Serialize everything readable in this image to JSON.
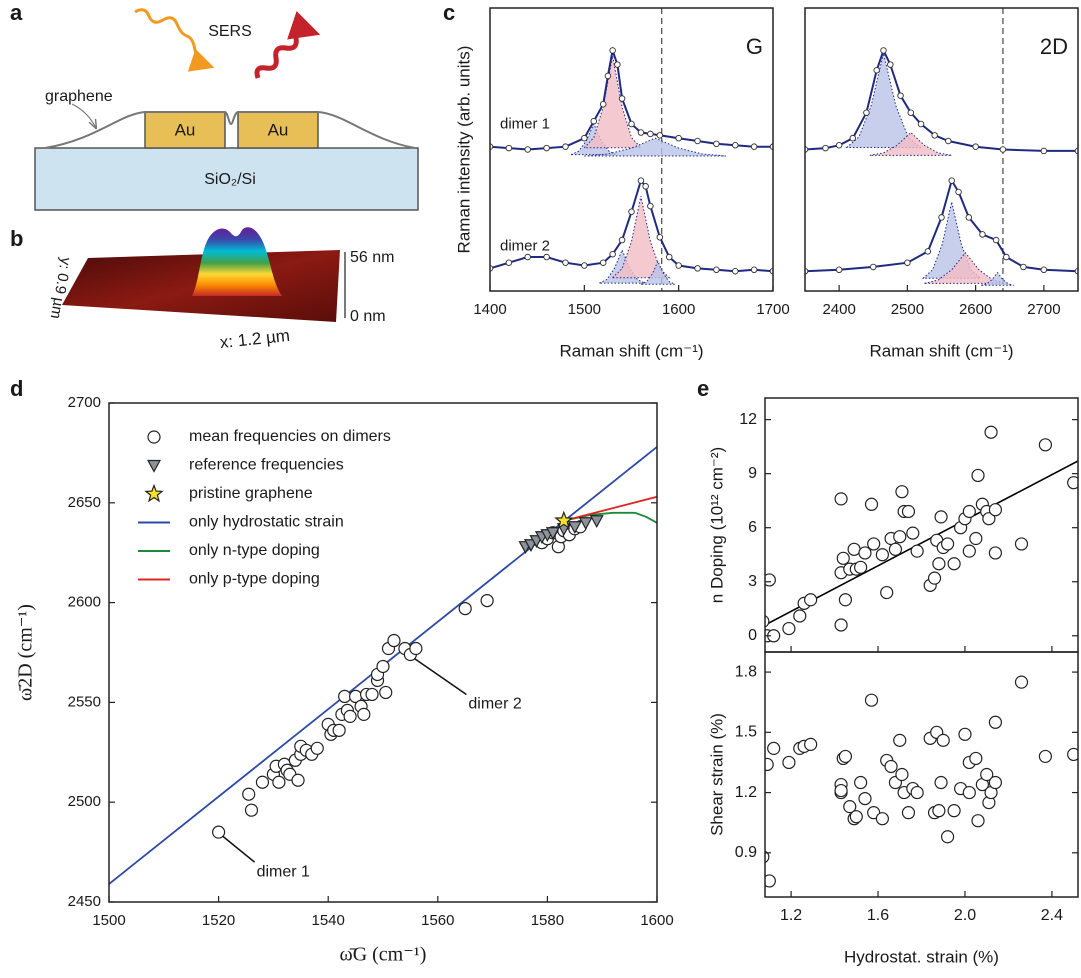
{
  "labels": [
    "a",
    "b",
    "c",
    "d",
    "e"
  ],
  "schematic": {
    "sers": "SERS",
    "graphene": "graphene",
    "gold": [
      "Au",
      "Au"
    ],
    "substrate": "SiO₂/Si"
  },
  "afm": {
    "z_max_label": "56 nm",
    "z_min_label": "0 nm",
    "y_label": "y: 0.9 µm",
    "x_label": "x: 1.2 µm"
  },
  "chart_data": [
    {
      "type": "spectra",
      "panel_label": "G",
      "xlim": [
        1400,
        1700
      ],
      "xticks": [
        1400,
        1500,
        1600,
        1700
      ],
      "ylim": [
        0,
        10
      ],
      "xlabel": "Raman shift (cm⁻¹)",
      "ylabel": "Raman intensity (arb. units)",
      "reference_line": 1582,
      "series": [
        {
          "name": "dimer 1",
          "color": "#1f2a80",
          "x": [
            1400,
            1420,
            1440,
            1460,
            1480,
            1500,
            1510,
            1520,
            1525,
            1530,
            1535,
            1540,
            1550,
            1560,
            1570,
            1580,
            1600,
            1620,
            1640,
            1660,
            1680,
            1700
          ],
          "values": [
            5.1,
            5.05,
            5.0,
            5.05,
            5.1,
            5.4,
            6.0,
            6.6,
            7.6,
            8.5,
            8.0,
            6.8,
            5.9,
            5.6,
            5.55,
            5.5,
            5.4,
            5.3,
            5.2,
            5.15,
            5.1,
            5.1
          ],
          "components": [
            {
              "color": "#b9c3e8",
              "x": [
                1486,
                1494,
                1502,
                1510,
                1518,
                1526,
                1534
              ],
              "values": [
                4.82,
                4.94,
                5.3,
                5.9,
                5.3,
                4.94,
                4.82
              ]
            },
            {
              "color": "#f3bcc4",
              "x": [
                1500,
                1510,
                1520,
                1530,
                1540,
                1550,
                1560
              ],
              "values": [
                5.06,
                5.42,
                6.5,
                8.3,
                6.5,
                5.42,
                5.06
              ]
            },
            {
              "color": "#b9c3e8",
              "x": [
                1500,
                1525,
                1550,
                1575,
                1600,
                1625,
                1650
              ],
              "values": [
                4.77,
                4.84,
                5.05,
                5.4,
                5.05,
                4.84,
                4.77
              ]
            }
          ]
        },
        {
          "name": "dimer 2",
          "color": "#1f2a80",
          "x": [
            1400,
            1420,
            1440,
            1460,
            1480,
            1500,
            1520,
            1530,
            1540,
            1550,
            1560,
            1565,
            1570,
            1580,
            1590,
            1600,
            1620,
            1640,
            1660,
            1680,
            1700
          ],
          "values": [
            0.8,
            1.0,
            1.2,
            1.2,
            1.0,
            0.9,
            1.0,
            1.3,
            1.8,
            2.8,
            3.9,
            3.7,
            3.0,
            1.9,
            1.2,
            0.9,
            0.8,
            0.75,
            0.7,
            0.75,
            0.7
          ],
          "components": [
            {
              "color": "#b9c3e8",
              "x": [
                1516,
                1524,
                1532,
                1540,
                1548,
                1556,
                1564
              ],
              "values": [
                0.28,
                0.41,
                0.8,
                1.45,
                0.8,
                0.41,
                0.28
              ]
            },
            {
              "color": "#f3bcc4",
              "x": [
                1530,
                1540,
                1550,
                1560,
                1570,
                1580,
                1590
              ],
              "values": [
                0.47,
                0.79,
                1.75,
                3.35,
                1.75,
                0.79,
                0.47
              ]
            },
            {
              "color": "#b9c3e8",
              "x": [
                1560,
                1566,
                1572,
                1578,
                1584,
                1590,
                1596
              ],
              "values": [
                0.24,
                0.33,
                0.6,
                1.05,
                0.6,
                0.33,
                0.24
              ]
            }
          ]
        }
      ]
    },
    {
      "type": "spectra",
      "panel_label": "2D",
      "xlim": [
        2350,
        2750
      ],
      "xticks": [
        2400,
        2500,
        2600,
        2700
      ],
      "ylim": [
        0,
        10
      ],
      "xlabel": "Raman shift (cm⁻¹)",
      "reference_line": 2640,
      "series": [
        {
          "color": "#1f2a80",
          "x": [
            2350,
            2380,
            2400,
            2420,
            2440,
            2455,
            2465,
            2475,
            2490,
            2505,
            2520,
            2540,
            2560,
            2600,
            2640,
            2700,
            2750
          ],
          "values": [
            5.0,
            5.05,
            5.15,
            5.4,
            6.3,
            7.8,
            8.5,
            8.0,
            6.9,
            6.3,
            5.9,
            5.5,
            5.3,
            5.1,
            5.0,
            4.95,
            4.95
          ],
          "components": [
            {
              "color": "#b9c3e8",
              "x": [
                2411,
                2429,
                2447,
                2465,
                2483,
                2501,
                2519
              ],
              "values": [
                5.07,
                5.44,
                6.55,
                8.4,
                6.55,
                5.44,
                5.07
              ]
            },
            {
              "color": "#f3bcc4",
              "x": [
                2445,
                2465,
                2485,
                2505,
                2525,
                2545,
                2565
              ],
              "values": [
                4.79,
                4.88,
                5.15,
                5.6,
                5.15,
                4.88,
                4.79
              ]
            }
          ]
        },
        {
          "color": "#1f2a80",
          "x": [
            2350,
            2400,
            2450,
            2500,
            2530,
            2550,
            2565,
            2575,
            2590,
            2610,
            2630,
            2645,
            2670,
            2700,
            2750
          ],
          "values": [
            0.7,
            0.75,
            0.85,
            1.0,
            1.4,
            2.6,
            3.9,
            3.5,
            2.6,
            2.0,
            1.8,
            1.2,
            0.85,
            0.75,
            0.7
          ],
          "components": [
            {
              "color": "#b9c3e8",
              "x": [
                2523,
                2537,
                2551,
                2565,
                2579,
                2593,
                2607
              ],
              "values": [
                0.45,
                0.75,
                1.65,
                3.15,
                1.65,
                0.75,
                0.45
              ]
            },
            {
              "color": "#f3bcc4",
              "x": [
                2525,
                2545,
                2565,
                2585,
                2605,
                2625,
                2645
              ],
              "values": [
                0.27,
                0.39,
                0.75,
                1.35,
                0.75,
                0.39,
                0.27
              ]
            },
            {
              "color": "#b9c3e8",
              "x": [
                2608,
                2616,
                2624,
                2632,
                2640,
                2648,
                2656
              ],
              "values": [
                0.2,
                0.25,
                0.4,
                0.65,
                0.4,
                0.25,
                0.2
              ]
            }
          ]
        }
      ]
    },
    {
      "type": "scatter",
      "xlim": [
        1500,
        1600
      ],
      "ylim": [
        2450,
        2700
      ],
      "xticks": [
        1500,
        1520,
        1540,
        1560,
        1580,
        1600
      ],
      "yticks": [
        2450,
        2500,
        2550,
        2600,
        2650,
        2700
      ],
      "xlabel": "ω̄G (cm⁻¹)",
      "ylabel": "ω̄2D (cm⁻¹)",
      "legend": "upper left",
      "annotations": [
        "dimer 1",
        "dimer 2"
      ],
      "series": [
        {
          "name": "mean frequencies on dimers",
          "marker": "circle",
          "color": "#ffffff",
          "x": [
            1520,
            1525.5,
            1526,
            1528,
            1530,
            1530.5,
            1531,
            1532,
            1532.5,
            1533,
            1534,
            1534.5,
            1535,
            1535,
            1536,
            1537,
            1538,
            1540,
            1540.5,
            1541,
            1542,
            1542.5,
            1543,
            1543.5,
            1544,
            1545,
            1546,
            1546.5,
            1547,
            1548,
            1549,
            1549,
            1550,
            1550.5,
            1551,
            1552,
            1554,
            1555,
            1556,
            1565,
            1569,
            1579,
            1580,
            1581,
            1582,
            1582.5,
            1583,
            1584,
            1585,
            1586
          ],
          "values": [
            2485,
            2504,
            2496,
            2510,
            2514,
            2518,
            2510,
            2519,
            2516,
            2514,
            2521,
            2511,
            2524,
            2528,
            2526,
            2524,
            2527,
            2539,
            2534,
            2536,
            2536,
            2544,
            2553,
            2546,
            2543,
            2553,
            2548,
            2544,
            2554,
            2554,
            2561,
            2564,
            2568,
            2555,
            2577,
            2581,
            2577,
            2574,
            2577,
            2597,
            2601,
            2630,
            2632,
            2635,
            2628,
            2633,
            2636,
            2634,
            2637,
            2638
          ]
        },
        {
          "name": "reference frequencies",
          "marker": "triangle",
          "color": "#8c929c",
          "x": [
            1576,
            1577,
            1578,
            1579,
            1580,
            1581,
            1583,
            1585,
            1587,
            1589
          ],
          "values": [
            2628,
            2629,
            2631,
            2633,
            2634,
            2635,
            2637,
            2638,
            2640,
            2641
          ]
        },
        {
          "name": "pristine graphene",
          "marker": "star",
          "color": "#f7e124",
          "x": [
            1583
          ],
          "values": [
            2641
          ]
        },
        {
          "name": "only hydrostatic strain",
          "marker": "none",
          "color": "#2d4aa6",
          "x": [
            1500,
            1600
          ],
          "values": [
            2459,
            2678
          ]
        },
        {
          "name": "only n-type doping",
          "marker": "none",
          "color": "#1d8a3a",
          "x": [
            1583,
            1588,
            1592,
            1596,
            1598,
            1600
          ],
          "values": [
            2641,
            2644,
            2645,
            2645,
            2643,
            2640
          ]
        },
        {
          "name": "only p-type doping",
          "marker": "none",
          "color": "#e02424",
          "x": [
            1583,
            1600
          ],
          "values": [
            2641,
            2653
          ]
        }
      ]
    },
    {
      "type": "scatter",
      "xlim": [
        1.08,
        2.52
      ],
      "ylim": [
        -0.9,
        13.2
      ],
      "xticks": [
        1.2,
        1.6,
        2,
        2.4
      ],
      "yticks": [
        0,
        3,
        6,
        9,
        12
      ],
      "ylabel": "n Doping (10¹² cm⁻²)",
      "series": [
        {
          "marker": "circle",
          "color": "#ffffff",
          "x": [
            1.05,
            1.07,
            1.09,
            1.1,
            1.12,
            1.19,
            1.24,
            1.26,
            1.29,
            1.43,
            1.43,
            1.44,
            1.43,
            1.45,
            1.47,
            1.49,
            1.5,
            1.52,
            1.54,
            1.57,
            1.58,
            1.62,
            1.64,
            1.66,
            1.68,
            1.7,
            1.71,
            1.72,
            1.74,
            1.76,
            1.78,
            1.84,
            1.86,
            1.87,
            1.88,
            1.89,
            1.9,
            1.92,
            1.95,
            1.98,
            2.0,
            2.02,
            2.02,
            2.05,
            2.06,
            2.08,
            2.1,
            2.11,
            2.12,
            2.14,
            2.14,
            2.26,
            2.37,
            2.5
          ],
          "values": [
            3.3,
            0.8,
            0,
            3.1,
            0,
            0.4,
            1.1,
            1.8,
            2,
            0.6,
            3.5,
            4.3,
            7.6,
            2,
            3.7,
            4.8,
            3.7,
            3.8,
            4.6,
            7.3,
            5.1,
            4.5,
            2.4,
            5.4,
            4.8,
            5.5,
            8,
            6.9,
            6.9,
            5.7,
            4.7,
            2.8,
            3.2,
            5.3,
            4,
            6.6,
            4.9,
            5.1,
            4,
            6,
            6.5,
            6.9,
            4.7,
            5.4,
            8.9,
            7.3,
            6.9,
            6.5,
            11.3,
            7,
            4.6,
            5.1,
            10.6,
            8.5
          ]
        },
        {
          "marker": "none",
          "color": "#000000",
          "x": [
            1.08,
            2.52
          ],
          "values": [
            0.6,
            9.7
          ]
        }
      ]
    },
    {
      "type": "scatter",
      "xlim": [
        1.08,
        2.52
      ],
      "ylim": [
        0.68,
        1.9
      ],
      "xticks": [
        1.2,
        1.6,
        {
          "value": 2,
          "label": "2.0"
        },
        2.4
      ],
      "yticks": [
        0.9,
        1.2,
        1.5,
        1.8
      ],
      "xlabel": "Hydrostat. strain (%)",
      "ylabel": "Shear strain (%)",
      "series": [
        {
          "marker": "circle",
          "color": "#ffffff",
          "x": [
            1.05,
            1.07,
            1.09,
            1.1,
            1.12,
            1.19,
            1.24,
            1.26,
            1.29,
            1.43,
            1.43,
            1.44,
            1.43,
            1.45,
            1.47,
            1.49,
            1.5,
            1.52,
            1.54,
            1.57,
            1.58,
            1.62,
            1.64,
            1.66,
            1.68,
            1.7,
            1.71,
            1.72,
            1.74,
            1.76,
            1.78,
            1.84,
            1.86,
            1.87,
            1.88,
            1.89,
            1.9,
            1.92,
            1.95,
            1.98,
            2.0,
            2.02,
            2.02,
            2.05,
            2.06,
            2.08,
            2.1,
            2.11,
            2.12,
            2.14,
            2.14,
            2.26,
            2.37,
            2.5
          ],
          "values": [
            0.94,
            0.88,
            1.34,
            0.76,
            1.42,
            1.35,
            1.42,
            1.43,
            1.44,
            1.2,
            1.24,
            1.37,
            1.21,
            1.38,
            1.13,
            1.07,
            1.08,
            1.25,
            1.17,
            1.66,
            1.1,
            1.07,
            1.36,
            1.33,
            1.25,
            1.46,
            1.29,
            1.2,
            1.1,
            1.22,
            1.2,
            1.47,
            1.1,
            1.5,
            1.11,
            1.25,
            1.46,
            0.98,
            1.11,
            1.22,
            1.49,
            1.2,
            1.35,
            1.37,
            1.06,
            1.24,
            1.29,
            1.15,
            1.2,
            1.55,
            1.25,
            1.75,
            1.38,
            1.39
          ]
        }
      ]
    }
  ]
}
